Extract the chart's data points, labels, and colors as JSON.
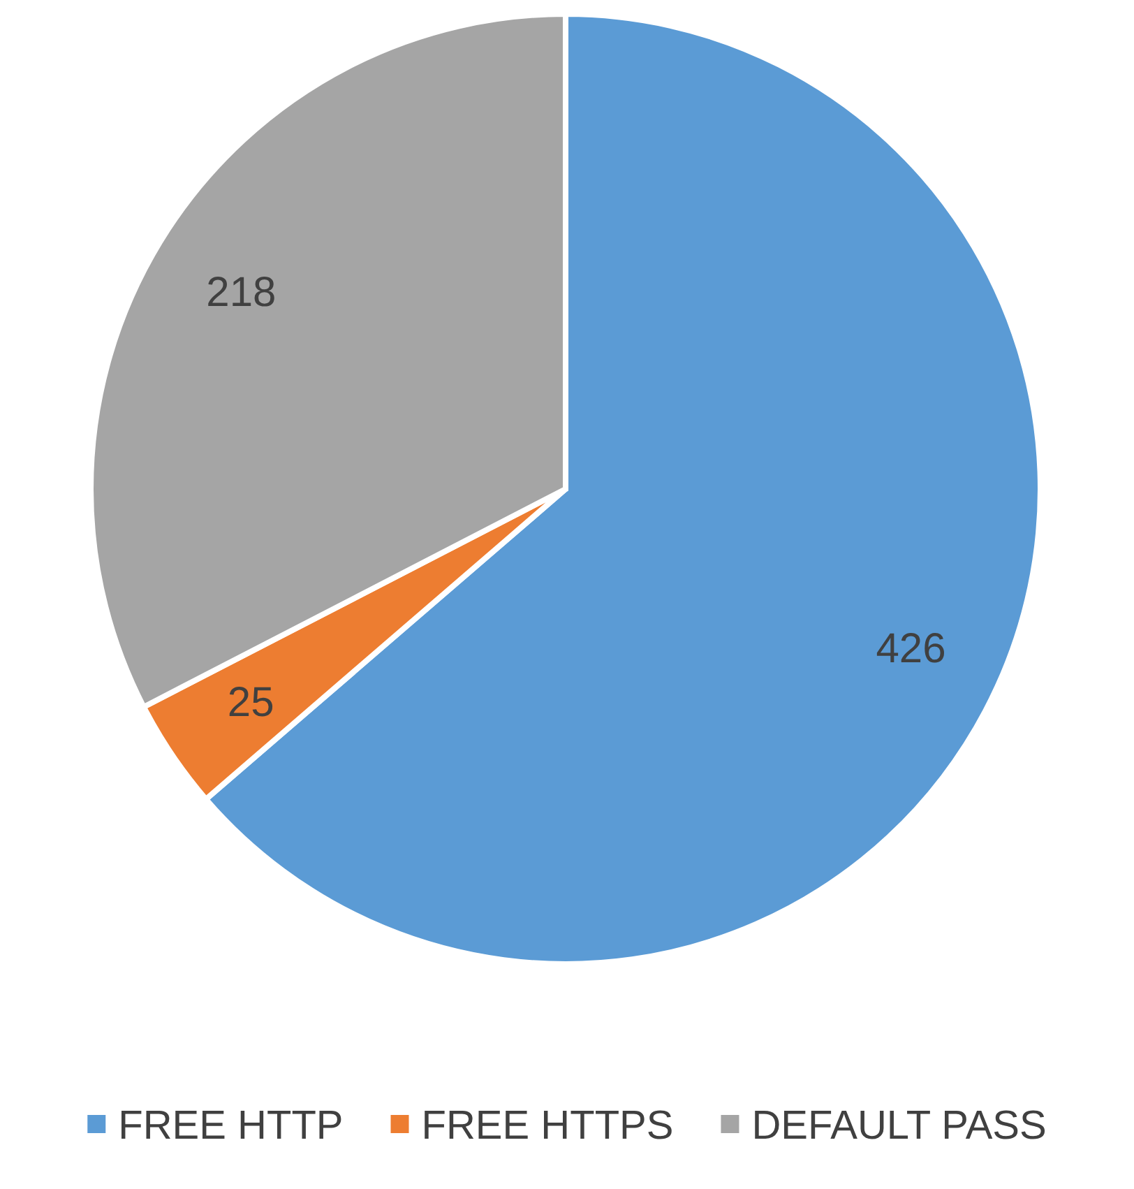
{
  "chart_data": {
    "type": "pie",
    "categories": [
      "FREE HTTP",
      "FREE HTTPS",
      "DEFAULT PASS"
    ],
    "values": [
      426,
      25,
      218
    ],
    "colors": [
      "#5b9bd5",
      "#ed7d31",
      "#a5a5a5"
    ],
    "data_labels": true,
    "legend": "bottom"
  }
}
